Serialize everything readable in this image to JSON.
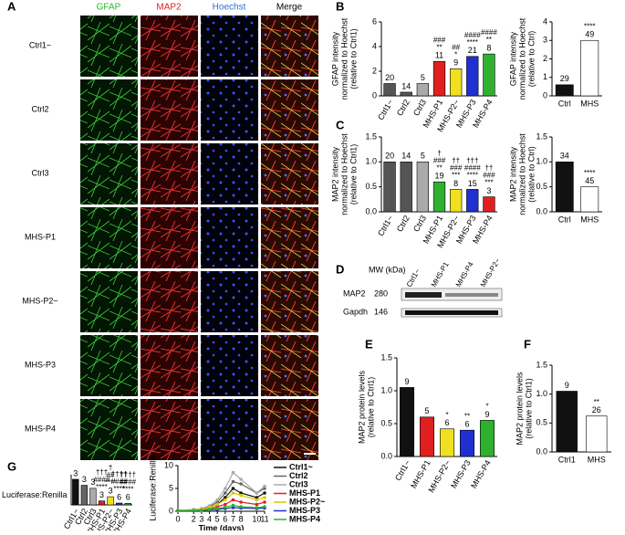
{
  "panel_labels": [
    "A",
    "B",
    "C",
    "D",
    "E",
    "F",
    "G"
  ],
  "panel_a": {
    "columns": [
      {
        "name": "GFAP",
        "color": "#2db82d"
      },
      {
        "name": "MAP2",
        "color": "#e02020"
      },
      {
        "name": "Hoechst",
        "color": "#2a6fd6"
      },
      {
        "name": "Merge",
        "color": "#000000"
      }
    ],
    "rows": [
      "Ctrl1~",
      "Ctrl2",
      "Ctrl3",
      "MHS-P1",
      "MHS-P2~",
      "MHS-P3",
      "MHS-P4"
    ]
  },
  "blot": {
    "mw_header": "MW (kDa)",
    "lanes": [
      "Ctrl1~",
      "MHS-P1",
      "MHS-P4",
      "MHS-P2~"
    ],
    "bands": [
      {
        "name": "MAP2",
        "mw": 280
      },
      {
        "name": "Gapdh",
        "mw": 146
      }
    ]
  },
  "chart_data": [
    {
      "type": "bar",
      "ylabel": [
        "GFAP intensity",
        "normalized to Hoechst",
        "(relative to Ctrl1)"
      ],
      "categories": [
        "Ctrl1~",
        "Ctrl2",
        "Ctrl3",
        "MHS-P1",
        "MHS-P2~",
        "MHS-P3",
        "MHS-P4"
      ],
      "values": [
        1.0,
        0.3,
        1.0,
        2.8,
        2.2,
        3.2,
        3.4
      ],
      "colors": [
        "#555555",
        "#555555",
        "#aaaaaa",
        "#e02020",
        "#f0e020",
        "#2030d0",
        "#30b030"
      ],
      "n": [
        20,
        14,
        5,
        11,
        9,
        21,
        8
      ],
      "marks": [
        [],
        [],
        [],
        [
          "###",
          "**"
        ],
        [
          "##",
          "*"
        ],
        [
          "####",
          "****"
        ],
        [
          "####",
          "**"
        ]
      ],
      "ylim": [
        0,
        6
      ],
      "yticks": [
        0,
        2,
        4,
        6
      ]
    },
    {
      "type": "bar",
      "ylabel": [
        "GFAP intensity",
        "normalized to Hoechst",
        "(relative to Ctrl)"
      ],
      "categories": [
        "Ctrl",
        "MHS"
      ],
      "values": [
        0.6,
        3.0
      ],
      "colors": [
        "#111111",
        "#ffffff"
      ],
      "n": [
        29,
        49
      ],
      "marks": [
        [],
        [
          "****"
        ]
      ],
      "ylim": [
        0,
        4
      ],
      "yticks": [
        0,
        1,
        2,
        3,
        4
      ]
    },
    {
      "type": "bar",
      "ylabel": [
        "MAP2 intensity",
        "normalized to Hoechst",
        "(relative to Ctrl1)"
      ],
      "categories": [
        "Ctrl1~",
        "Ctrl2",
        "Ctrl3",
        "MHS-P1",
        "MHS-P2~",
        "MHS-P3",
        "MHS-P4"
      ],
      "values": [
        1.0,
        1.0,
        1.0,
        0.6,
        0.45,
        0.45,
        0.3
      ],
      "colors": [
        "#555555",
        "#555555",
        "#aaaaaa",
        "#30b030",
        "#f0e020",
        "#2030d0",
        "#e02020"
      ],
      "n": [
        20,
        14,
        5,
        19,
        8,
        15,
        3
      ],
      "marks": [
        [],
        [],
        [],
        [
          "†",
          "###",
          "**"
        ],
        [
          "††",
          "###",
          "***"
        ],
        [
          "†††",
          "####",
          "****"
        ],
        [
          "††",
          "###",
          "***"
        ]
      ],
      "ylim": [
        0,
        1.5
      ],
      "yticks": [
        {
          "value": 0,
          "label": "0.0"
        },
        {
          "value": 0.5,
          "label": "0.5"
        },
        {
          "value": 1,
          "label": "1.0"
        },
        {
          "value": 1.5,
          "label": "1.5"
        }
      ]
    },
    {
      "type": "bar",
      "ylabel": [
        "MAP2 intensity",
        "normalized to Hoechst",
        "(relative to Ctrl)"
      ],
      "categories": [
        "Ctrl",
        "MHS"
      ],
      "values": [
        1.0,
        0.5
      ],
      "colors": [
        "#111111",
        "#ffffff"
      ],
      "n": [
        34,
        45
      ],
      "marks": [
        [],
        [
          "****"
        ]
      ],
      "ylim": [
        0,
        1.5
      ],
      "yticks": [
        {
          "value": 0,
          "label": "0.0"
        },
        {
          "value": 0.5,
          "label": "0.5"
        },
        {
          "value": 1,
          "label": "1.0"
        },
        {
          "value": 1.5,
          "label": "1.5"
        }
      ]
    },
    {
      "type": "bar",
      "ylabel": [
        "MAP2 protein levels",
        "(relative to Ctrl1)"
      ],
      "categories": [
        "Ctrl1~",
        "MHS-P1",
        "MHS-P2~",
        "MHS-P3",
        "MHS-P4"
      ],
      "values": [
        1.05,
        0.6,
        0.42,
        0.4,
        0.55
      ],
      "colors": [
        "#111111",
        "#e02020",
        "#f0e020",
        "#2030d0",
        "#30b030"
      ],
      "n": [
        9,
        5,
        6,
        6,
        9
      ],
      "marks": [
        [],
        [],
        [
          "*"
        ],
        [
          "**"
        ],
        [
          "*"
        ]
      ],
      "ylim": [
        0,
        1.5
      ],
      "yticks": [
        {
          "value": 0,
          "label": "0.0"
        },
        {
          "value": 0.5,
          "label": "0.5"
        },
        {
          "value": 1,
          "label": "1.0"
        },
        {
          "value": 1.5,
          "label": "1.5"
        }
      ]
    },
    {
      "type": "bar",
      "ylabel": [
        "MAP2 protein levels",
        "(relative to Ctrl1)"
      ],
      "categories": [
        "Ctrl1",
        "MHS"
      ],
      "values": [
        1.05,
        0.62
      ],
      "colors": [
        "#111111",
        "#ffffff"
      ],
      "n": [
        9,
        26
      ],
      "marks": [
        [],
        [
          "**"
        ]
      ],
      "ylim": [
        0,
        1.5
      ],
      "yticks": [
        {
          "value": 0,
          "label": "0.0"
        },
        {
          "value": 0.5,
          "label": "0.5"
        },
        {
          "value": 1,
          "label": "1.0"
        },
        {
          "value": 1.5,
          "label": "1.5"
        }
      ]
    },
    {
      "type": "bar",
      "ylabel": [
        "Luciferase:Renilla"
      ],
      "categories": [
        "Ctrl1~",
        "Ctrl2",
        "Ctrl3",
        "MHS-P1",
        "MHS-P2~",
        "MHS-P3",
        "MHS-P4"
      ],
      "values": [
        8.5,
        6.5,
        5.5,
        1.3,
        2.7,
        0.6,
        0.5
      ],
      "colors": [
        "#111111",
        "#666666",
        "#aaaaaa",
        "#e02020",
        "#f0e020",
        "#2030d0",
        "#30b030"
      ],
      "n": [
        3,
        3,
        3,
        3,
        3,
        6,
        6
      ],
      "marks": [
        [],
        [],
        [],
        [
          "†††",
          "####",
          "****"
        ],
        [
          "†",
          "##",
          "****"
        ],
        [
          "††††",
          "####",
          "****"
        ],
        [
          "††††",
          "####",
          "****"
        ]
      ],
      "ylim": [
        0,
        10
      ]
    },
    {
      "type": "line",
      "ylabel": [
        "Luciferase:Renilla"
      ],
      "xlabel": "Time (days)",
      "x": [
        0,
        2,
        3,
        4,
        5,
        6,
        7,
        8,
        10,
        11
      ],
      "xlim": [
        0,
        11
      ],
      "xticks": [
        0,
        2,
        3,
        4,
        5,
        6,
        7,
        8,
        10,
        11
      ],
      "ylim": [
        0,
        10
      ],
      "yticks": [
        0,
        5,
        10
      ],
      "series": [
        {
          "name": "Ctrl1~",
          "color": "#111111",
          "values": [
            0.2,
            0.3,
            0.4,
            0.8,
            1.5,
            3,
            5,
            4,
            3,
            4
          ]
        },
        {
          "name": "Ctrl2",
          "color": "#666666",
          "values": [
            0.2,
            0.3,
            0.5,
            1,
            2,
            4,
            6.5,
            6,
            4,
            5
          ]
        },
        {
          "name": "Ctrl3",
          "color": "#aaaaaa",
          "values": [
            0.2,
            0.4,
            0.6,
            1.2,
            2.5,
            5,
            8.5,
            7,
            4,
            5.5
          ]
        },
        {
          "name": "MHS-P1",
          "color": "#e02020",
          "values": [
            0.1,
            0.2,
            0.3,
            0.5,
            1,
            1.5,
            2.5,
            2,
            1.5,
            2
          ]
        },
        {
          "name": "MHS-P2~",
          "color": "#d8c800",
          "values": [
            0.2,
            0.3,
            0.4,
            0.8,
            1.5,
            2.5,
            4,
            3.5,
            2.5,
            3
          ]
        },
        {
          "name": "MHS-P3",
          "color": "#2030d0",
          "values": [
            0.1,
            0.1,
            0.2,
            0.3,
            0.4,
            0.6,
            0.8,
            0.7,
            0.6,
            0.7
          ]
        },
        {
          "name": "MHS-P4",
          "color": "#30b030",
          "values": [
            0.1,
            0.2,
            0.2,
            0.4,
            0.6,
            0.9,
            1.3,
            1,
            0.8,
            1
          ]
        }
      ]
    }
  ]
}
